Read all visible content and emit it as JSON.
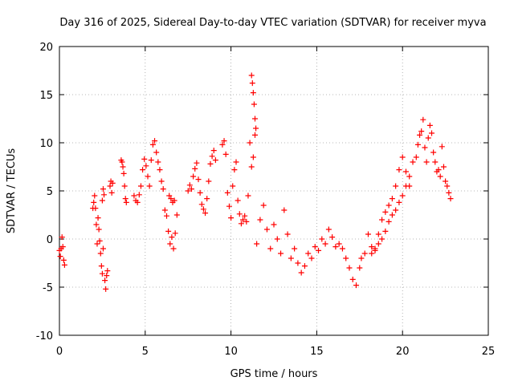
{
  "chart_data": {
    "type": "scatter",
    "title": "Day 316 of 2025, Sidereal Day-to-day VTEC variation (SDTVAR) for receiver myva",
    "xlabel": "GPS time / hours",
    "ylabel": "SDTVAR / TECUs",
    "xlim": [
      0,
      25
    ],
    "ylim": [
      -10,
      20
    ],
    "xticks": [
      0,
      5,
      10,
      15,
      20,
      25
    ],
    "yticks": [
      -10,
      -5,
      0,
      5,
      10,
      15,
      20
    ],
    "grid": true,
    "marker": "+",
    "marker_color": "#ff0000",
    "series": [
      {
        "name": "SDTVAR",
        "segments": [
          {
            "x": [
              0.0,
              0.05,
              0.1,
              0.15,
              0.2,
              0.25,
              0.3
            ],
            "y": [
              -1.2,
              -1.8,
              -1.0,
              0.2,
              -0.8,
              -2.2,
              -2.7
            ]
          },
          {
            "x": [
              1.95,
              2.0,
              2.05,
              2.1,
              2.15,
              2.2,
              2.25,
              2.3,
              2.35,
              2.4,
              2.45,
              2.5,
              2.55
            ],
            "y": [
              3.2,
              3.8,
              4.5,
              3.2,
              1.5,
              -0.5,
              2.2,
              1.0,
              -0.2,
              -1.5,
              -2.8,
              -3.6,
              -1.0
            ]
          },
          {
            "x": [
              2.5,
              2.55,
              2.6,
              2.65,
              2.7,
              2.75,
              2.8
            ],
            "y": [
              4.0,
              5.2,
              4.6,
              -4.3,
              -5.2,
              -3.8,
              -3.3
            ]
          },
          {
            "x": [
              2.95,
              3.0,
              3.05,
              3.1
            ],
            "y": [
              5.5,
              6.0,
              4.8,
              5.8
            ]
          },
          {
            "x": [
              3.6,
              3.65,
              3.7,
              3.75,
              3.8,
              3.85,
              3.9
            ],
            "y": [
              8.2,
              8.0,
              7.5,
              6.8,
              5.5,
              4.2,
              3.8
            ]
          },
          {
            "x": [
              4.35,
              4.45,
              4.55,
              4.65,
              4.75,
              4.85,
              4.95,
              5.05,
              5.15,
              5.25,
              5.35,
              5.45,
              5.55,
              5.65,
              5.75,
              5.85,
              5.95,
              6.05
            ],
            "y": [
              4.5,
              4.0,
              3.8,
              4.6,
              5.5,
              7.2,
              8.3,
              7.6,
              6.5,
              5.5,
              8.2,
              9.8,
              10.2,
              9.0,
              8.0,
              7.2,
              6.0,
              5.2
            ]
          },
          {
            "x": [
              6.15,
              6.25,
              6.35,
              6.45,
              6.55,
              6.65,
              6.75,
              6.85
            ],
            "y": [
              3.0,
              2.4,
              0.8,
              -0.5,
              0.2,
              -1.0,
              0.6,
              2.5
            ]
          },
          {
            "x": [
              6.4,
              6.5,
              6.6,
              6.7
            ],
            "y": [
              4.5,
              4.2,
              3.8,
              4.0
            ]
          },
          {
            "x": [
              7.5,
              7.6,
              7.7,
              7.8,
              7.9,
              8.0,
              8.1,
              8.2,
              8.3,
              8.4,
              8.5,
              8.6,
              8.7,
              8.8,
              8.9,
              9.0,
              9.1
            ],
            "y": [
              5.0,
              5.6,
              5.2,
              6.5,
              7.3,
              7.9,
              6.2,
              4.8,
              3.6,
              3.1,
              2.7,
              4.2,
              6.0,
              7.8,
              8.6,
              9.2,
              8.2
            ]
          },
          {
            "x": [
              9.5,
              9.6,
              9.7,
              9.8,
              9.9,
              10.0,
              10.1,
              10.2,
              10.3,
              10.4,
              10.5,
              10.6,
              10.7,
              10.8,
              10.9
            ],
            "y": [
              9.8,
              10.2,
              8.8,
              4.8,
              3.4,
              2.2,
              5.5,
              7.2,
              8.0,
              4.0,
              2.6,
              1.6,
              2.0,
              2.4,
              1.8
            ]
          },
          {
            "x": [
              11.0,
              11.1,
              11.2,
              11.3,
              11.4
            ],
            "y": [
              4.5,
              10.0,
              7.5,
              8.5,
              10.8
            ]
          },
          {
            "x": [
              11.2,
              11.25,
              11.3,
              11.35,
              11.4,
              11.45
            ],
            "y": [
              17.0,
              16.2,
              15.2,
              14.0,
              12.5,
              11.5
            ]
          },
          {
            "x": [
              11.5,
              11.7,
              11.9,
              12.1,
              12.3,
              12.5,
              12.7,
              12.9,
              13.1,
              13.3,
              13.5,
              13.7,
              13.9,
              14.1,
              14.3,
              14.5,
              14.7,
              14.9,
              15.1,
              15.3,
              15.5,
              15.7,
              15.9,
              16.1,
              16.3,
              16.5,
              16.7,
              16.9,
              17.1,
              17.3,
              17.5
            ],
            "y": [
              -0.5,
              2.0,
              3.5,
              1.0,
              -1.0,
              1.5,
              0.0,
              -1.5,
              3.0,
              0.5,
              -2.0,
              -1.0,
              -2.5,
              -3.5,
              -2.8,
              -1.5,
              -2.0,
              -0.8,
              -1.2,
              0.0,
              -0.5,
              1.0,
              0.2,
              -0.8,
              -0.5,
              -1.0,
              -2.0,
              -3.0,
              -4.2,
              -4.8,
              -3.0
            ]
          },
          {
            "x": [
              17.6,
              17.8,
              18.0,
              18.2,
              18.4,
              18.6,
              18.8,
              19.0,
              19.2,
              19.4,
              19.6,
              19.8,
              20.0,
              20.2,
              20.4
            ],
            "y": [
              -2.0,
              -1.5,
              0.5,
              -0.8,
              -1.2,
              0.5,
              2.0,
              2.8,
              3.5,
              4.2,
              5.5,
              7.2,
              8.5,
              7.0,
              5.5
            ]
          },
          {
            "x": [
              18.2,
              18.4,
              18.6,
              18.8,
              19.0,
              19.2,
              19.4,
              19.6,
              19.8,
              20.0,
              20.2,
              20.4,
              20.6
            ],
            "y": [
              -1.5,
              -1.0,
              -0.5,
              0.0,
              0.8,
              1.8,
              2.5,
              3.0,
              3.8,
              4.5,
              5.5,
              6.5,
              8.0
            ]
          },
          {
            "x": [
              20.8,
              20.9,
              21.0,
              21.1,
              21.2,
              21.3,
              21.4,
              21.5,
              21.6,
              21.7,
              21.8,
              21.9,
              22.0,
              22.1,
              22.2,
              22.3,
              22.4,
              22.5,
              22.6,
              22.7,
              22.8
            ],
            "y": [
              8.5,
              9.8,
              10.8,
              11.2,
              12.4,
              9.5,
              8.0,
              10.5,
              11.8,
              11.0,
              9.0,
              8.0,
              7.0,
              7.2,
              6.5,
              9.6,
              7.5,
              6.0,
              5.5,
              4.8,
              4.2
            ]
          }
        ]
      }
    ]
  }
}
